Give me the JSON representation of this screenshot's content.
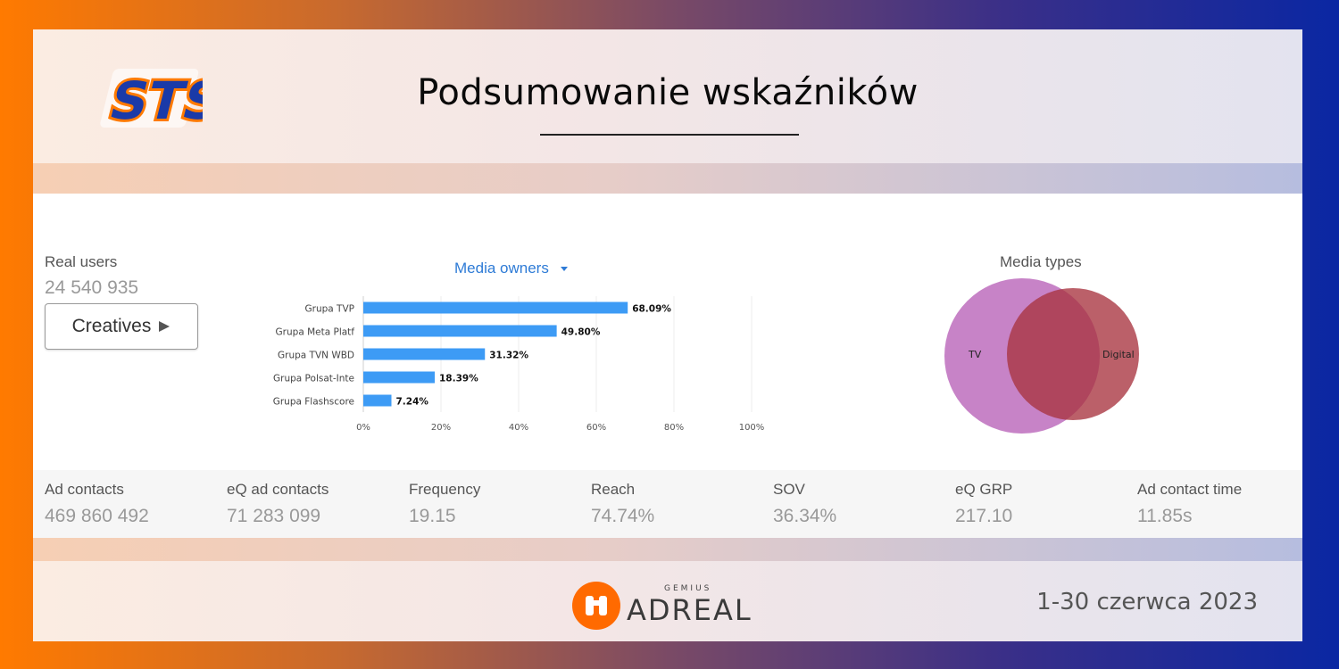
{
  "header": {
    "title": "Podsumowanie wskaźników",
    "logo": "STS"
  },
  "real_users": {
    "label": "Real users",
    "value": "24 540 935"
  },
  "creatives_button": {
    "label": "Creatives",
    "icon": "play-triangle-icon"
  },
  "media_owners": {
    "title": "Media owners",
    "icon": "caret-down-icon"
  },
  "media_types": {
    "title": "Media types",
    "sets": [
      "TV",
      "Digital"
    ]
  },
  "chart_data": [
    {
      "type": "bar",
      "orientation": "horizontal",
      "title": "",
      "categories": [
        "Grupa TVP",
        "Grupa Meta Platf",
        "Grupa TVN WBD",
        "Grupa Polsat-Inte",
        "Grupa Flashscore"
      ],
      "values": [
        68.09,
        49.8,
        31.32,
        18.39,
        7.24
      ],
      "value_labels": [
        "68.09%",
        "49.80%",
        "31.32%",
        "18.39%",
        "7.24%"
      ],
      "xticks": [
        "0%",
        "20%",
        "40%",
        "60%",
        "80%",
        "100%"
      ],
      "xlim": [
        0,
        100
      ],
      "color": "#3d9bf5"
    },
    {
      "type": "venn",
      "sets": [
        "TV",
        "Digital"
      ],
      "colors": [
        "#c47cc4",
        "#a8333f"
      ]
    }
  ],
  "metrics": [
    {
      "label": "Ad contacts",
      "value": "469 860 492"
    },
    {
      "label": "eQ ad contacts",
      "value": "71 283 099"
    },
    {
      "label": "Frequency",
      "value": "19.15"
    },
    {
      "label": "Reach",
      "value": "74.74%"
    },
    {
      "label": "SOV",
      "value": "36.34%"
    },
    {
      "label": "eQ GRP",
      "value": "217.10"
    },
    {
      "label": "Ad contact time",
      "value": "11.85s"
    }
  ],
  "footer": {
    "brand_small": "GEMIUS",
    "brand_large": "ADREAL",
    "date": "1-30 czerwca 2023"
  },
  "colors": {
    "accent": "#2e7bd6",
    "bar": "#3d9bf5",
    "sts_blue": "#1a3aa8",
    "sts_orange": "#ff7a00"
  }
}
